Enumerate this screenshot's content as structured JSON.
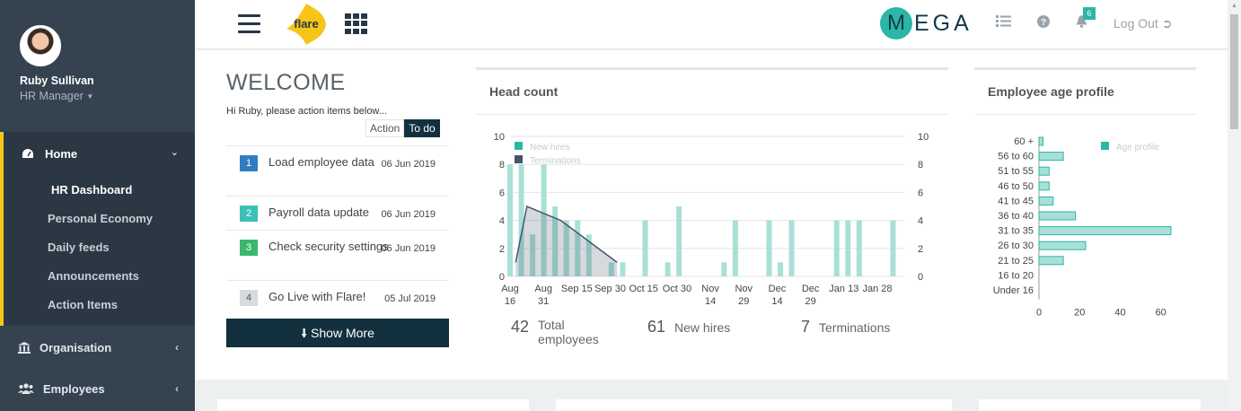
{
  "user": {
    "name": "Ruby Sullivan",
    "role": "HR Manager"
  },
  "sidebar": {
    "home_label": "Home",
    "sub_items": [
      "HR Dashboard",
      "Personal Economy",
      "Daily feeds",
      "Announcements",
      "Action Items"
    ],
    "organisation_label": "Organisation",
    "employees_label": "Employees"
  },
  "topbar": {
    "logo_text": "flare",
    "brand_initial": "M",
    "brand_rest": "EGA",
    "notification_count": "6",
    "logout_label": "Log Out"
  },
  "welcome": {
    "title": "WELCOME",
    "subtitle": "Hi Ruby, please action items below...",
    "toggle_action": "Action",
    "toggle_todo": "To do",
    "items": [
      {
        "num": "1",
        "text": "Load employee data",
        "date": "06 Jun 2019"
      },
      {
        "num": "2",
        "text": "Payroll data update",
        "date": "06 Jun 2019"
      },
      {
        "num": "3",
        "text": "Check security settings",
        "date": "06 Jun 2019"
      },
      {
        "num": "4",
        "text": "Go Live with Flare!",
        "date": "05 Jul 2019"
      }
    ],
    "show_more": "Show More"
  },
  "headcount": {
    "title": "Head count",
    "stats": {
      "total_value": "42",
      "total_label": "Total employees",
      "hires_value": "61",
      "hires_label": "New hires",
      "term_value": "7",
      "term_label": "Terminations"
    }
  },
  "age_profile": {
    "title": "Employee age profile"
  },
  "colors": {
    "teal": "#2bb6a7",
    "navy": "#13303f",
    "sidebar": "#34434f",
    "accent": "#f5c518"
  },
  "chart_data": [
    {
      "type": "bar",
      "title": "Head count",
      "x_ticks": [
        "Aug 16",
        "Aug 31",
        "Sep 15",
        "Sep 30",
        "Oct 15",
        "Oct 30",
        "Nov 14",
        "Nov 29",
        "Dec 14",
        "Dec 29",
        "Jan 13",
        "Jan 28"
      ],
      "ylim": [
        0,
        10
      ],
      "y_ticks": [
        0,
        2,
        4,
        6,
        8,
        10
      ],
      "legend": [
        "New hires",
        "Terminations"
      ],
      "series": [
        {
          "name": "New hires",
          "color": "#a8e0d6",
          "x": [
            0,
            1,
            2,
            3,
            4,
            5,
            6,
            7,
            9,
            10,
            12,
            14,
            15,
            19,
            20,
            23,
            24,
            25,
            29,
            30,
            31,
            34
          ],
          "values": [
            8,
            8,
            3,
            8,
            5,
            4,
            4,
            3,
            1,
            1,
            4,
            1,
            5,
            1,
            4,
            4,
            1,
            4,
            4,
            4,
            4,
            4
          ]
        },
        {
          "name": "Terminations",
          "color": "#44546a",
          "x": [
            0.5,
            1.5,
            4.5,
            9.5
          ],
          "values": [
            1,
            5,
            4,
            1
          ]
        }
      ]
    },
    {
      "type": "bar",
      "orientation": "horizontal",
      "title": "Employee age profile",
      "categories": [
        "60 +",
        "56 to 60",
        "51 to 55",
        "46 to 50",
        "41 to 45",
        "36 to 40",
        "31 to 35",
        "26 to 30",
        "21 to 25",
        "16 to 20",
        "Under 16"
      ],
      "values": [
        2,
        12,
        5,
        5,
        7,
        18,
        65,
        23,
        12,
        0,
        0
      ],
      "xlim": [
        0,
        65
      ],
      "x_ticks": [
        0,
        20,
        40,
        60
      ],
      "legend": [
        "Age profile"
      ]
    }
  ]
}
